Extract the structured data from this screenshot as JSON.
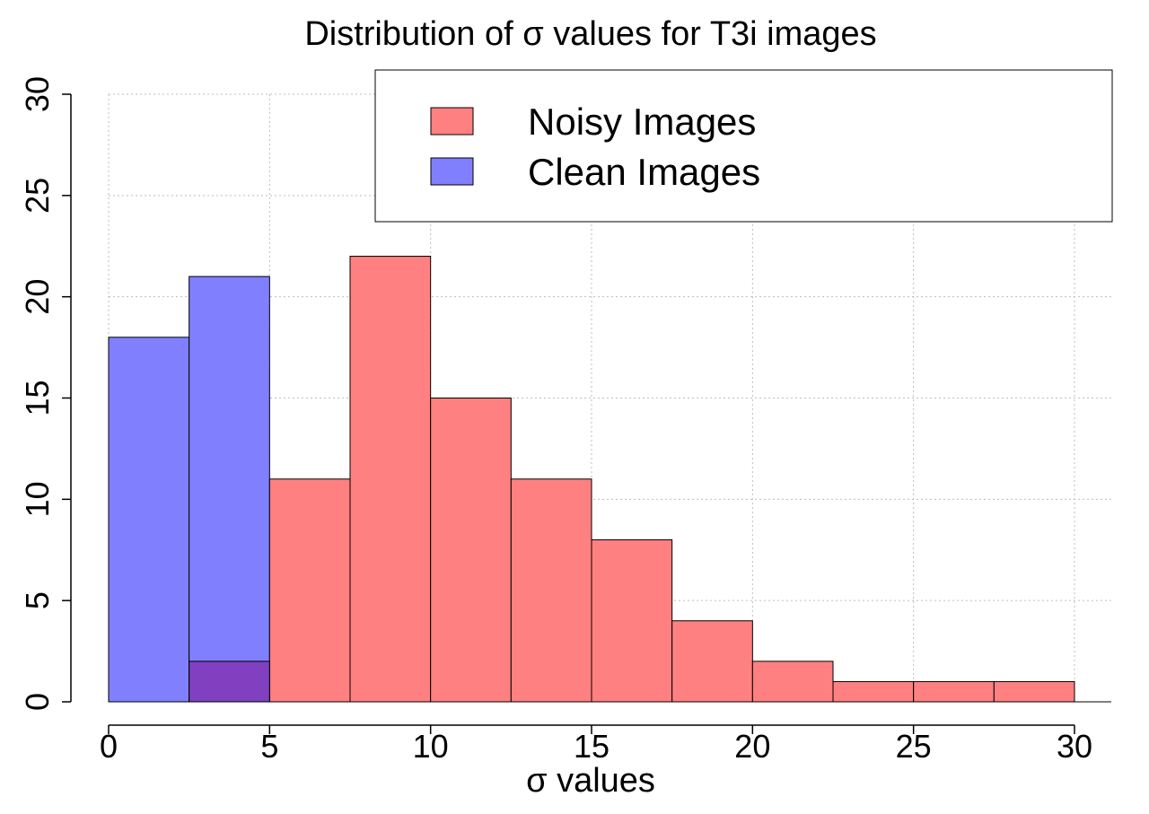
{
  "chart_data": {
    "type": "bar",
    "title": "Distribution of σ values for T3i images",
    "xlabel": "σ values",
    "ylabel": "",
    "xlim": [
      0,
      30
    ],
    "ylim": [
      0,
      30
    ],
    "xticks": [
      0,
      5,
      10,
      15,
      20,
      25,
      30
    ],
    "yticks": [
      0,
      5,
      10,
      15,
      20,
      25,
      30
    ],
    "grid": true,
    "legend_position": "top-right",
    "series": [
      {
        "name": "Noisy Images",
        "color": "#ff8080",
        "bins": [
          {
            "x0": 2.5,
            "x1": 5,
            "count": 2
          },
          {
            "x0": 5,
            "x1": 7.5,
            "count": 11
          },
          {
            "x0": 7.5,
            "x1": 10,
            "count": 22
          },
          {
            "x0": 10,
            "x1": 12.5,
            "count": 15
          },
          {
            "x0": 12.5,
            "x1": 15,
            "count": 11
          },
          {
            "x0": 15,
            "x1": 17.5,
            "count": 8
          },
          {
            "x0": 17.5,
            "x1": 20,
            "count": 4
          },
          {
            "x0": 20,
            "x1": 22.5,
            "count": 2
          },
          {
            "x0": 22.5,
            "x1": 25,
            "count": 1
          },
          {
            "x0": 25,
            "x1": 27.5,
            "count": 1
          },
          {
            "x0": 27.5,
            "x1": 30,
            "count": 1
          }
        ]
      },
      {
        "name": "Clean Images",
        "color": "#8080ff",
        "bins": [
          {
            "x0": 0,
            "x1": 2.5,
            "count": 18
          },
          {
            "x0": 2.5,
            "x1": 5,
            "count": 21
          }
        ]
      }
    ],
    "overlap_color": "#8040c0"
  }
}
